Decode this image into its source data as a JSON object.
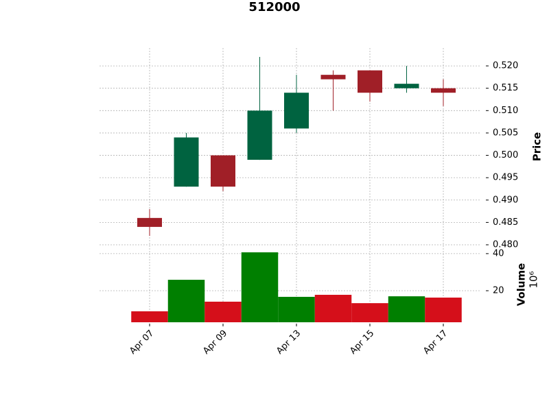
{
  "chart_data": {
    "type": "candlestick",
    "title": "512000",
    "categories": [
      "Apr 07",
      null,
      "Apr 09",
      null,
      "Apr 13",
      null,
      "Apr 15",
      null,
      "Apr 17"
    ],
    "open": [
      0.486,
      0.493,
      0.5,
      0.499,
      0.506,
      0.518,
      0.519,
      0.515,
      0.515
    ],
    "high": [
      0.488,
      0.505,
      0.5,
      0.522,
      0.518,
      0.519,
      0.519,
      0.52,
      0.517
    ],
    "low": [
      0.482,
      0.493,
      0.492,
      0.499,
      0.505,
      0.51,
      0.512,
      0.514,
      0.511
    ],
    "close": [
      0.484,
      0.504,
      0.493,
      0.51,
      0.514,
      0.517,
      0.514,
      0.516,
      0.514
    ],
    "up_color": "#006340",
    "down_color": "#a01f27",
    "ylabel": "Price",
    "ylim": [
      0.48,
      0.524
    ],
    "yticks": [
      {
        "value": 0.48,
        "label": "0.480"
      },
      {
        "value": 0.485,
        "label": "0.485"
      },
      {
        "value": 0.49,
        "label": "0.490"
      },
      {
        "value": 0.495,
        "label": "0.495"
      },
      {
        "value": 0.5,
        "label": "0.500"
      },
      {
        "value": 0.505,
        "label": "0.505"
      },
      {
        "value": 0.51,
        "label": "0.510"
      },
      {
        "value": 0.515,
        "label": "0.515"
      },
      {
        "value": 0.52,
        "label": "0.520"
      }
    ],
    "grid": true,
    "volume": {
      "ylabel": "Volume",
      "offset_label": "10⁶",
      "values": [
        8.9,
        25.9,
        14.1,
        40.7,
        16.7,
        17.8,
        13.3,
        17.0,
        16.3
      ],
      "up_color": "#007f00",
      "down_color": "#d50f1a",
      "ylim": [
        3,
        44.4
      ],
      "yticks": [
        20,
        40
      ]
    }
  }
}
